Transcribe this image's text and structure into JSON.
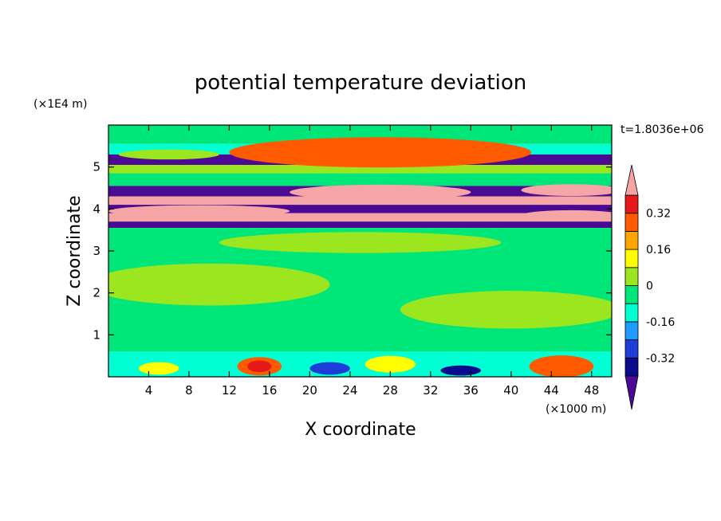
{
  "chart_data": {
    "type": "heatmap",
    "title": "potential temperature deviation",
    "xlabel": "X coordinate",
    "ylabel": "Z coordinate",
    "x_unit": "(×1000 m)",
    "y_unit": "(×1E4 m)",
    "time_label": "t=1.8036e+06",
    "xlim": [
      0,
      50
    ],
    "ylim": [
      0,
      6
    ],
    "x_ticks": [
      4,
      8,
      12,
      16,
      20,
      24,
      28,
      32,
      36,
      40,
      44,
      48
    ],
    "y_ticks": [
      1,
      2,
      3,
      4,
      5
    ],
    "colorbar": {
      "levels": [
        -0.4,
        -0.32,
        -0.24,
        -0.16,
        -0.08,
        0,
        0.08,
        0.16,
        0.24,
        0.32,
        0.4
      ],
      "colors": [
        "#4b0a93",
        "#0a0a8c",
        "#1e3cd8",
        "#1e9bff",
        "#00ffd2",
        "#00e678",
        "#9be61e",
        "#ffff00",
        "#ffa500",
        "#ff5a00",
        "#e61919",
        "#f5a5a5"
      ],
      "tick_labels": [
        "0.32",
        "0.16",
        "0",
        "-0.16",
        "-0.32"
      ],
      "tick_values": [
        0.32,
        0.16,
        0,
        -0.16,
        -0.32
      ]
    },
    "bands": [
      {
        "zmin": 5.55,
        "zmax": 6.0,
        "category": 5
      },
      {
        "zmin": 5.3,
        "zmax": 5.55,
        "category": 4
      },
      {
        "zmin": 5.05,
        "zmax": 5.3,
        "category": 0
      },
      {
        "zmin": 4.85,
        "zmax": 5.05,
        "category": 6
      },
      {
        "zmin": 4.55,
        "zmax": 4.85,
        "category": 5
      },
      {
        "zmin": 4.3,
        "zmax": 4.55,
        "category": 0
      },
      {
        "zmin": 4.1,
        "zmax": 4.3,
        "category": 11
      },
      {
        "zmin": 3.9,
        "zmax": 4.1,
        "category": 0
      },
      {
        "zmin": 3.7,
        "zmax": 3.9,
        "category": 11
      },
      {
        "zmin": 3.55,
        "zmax": 3.7,
        "category": 0
      },
      {
        "zmin": 0.6,
        "zmax": 3.55,
        "category": 5
      },
      {
        "zmin": 0.0,
        "zmax": 0.6,
        "category": 4
      }
    ],
    "blobs": [
      {
        "x": 27,
        "z": 5.35,
        "rx": 14,
        "rz": 0.3,
        "category": 11
      },
      {
        "x": 27,
        "z": 5.35,
        "rx": 15,
        "rz": 0.36,
        "category": 9
      },
      {
        "x": 6,
        "z": 5.3,
        "rx": 5,
        "rz": 0.12,
        "category": 6
      },
      {
        "x": 27,
        "z": 4.4,
        "rx": 9,
        "rz": 0.18,
        "category": 11
      },
      {
        "x": 46,
        "z": 4.45,
        "rx": 5,
        "rz": 0.14,
        "category": 11
      },
      {
        "x": 9,
        "z": 3.95,
        "rx": 9,
        "rz": 0.14,
        "category": 11
      },
      {
        "x": 46,
        "z": 3.85,
        "rx": 5,
        "rz": 0.12,
        "category": 11
      },
      {
        "x": 10,
        "z": 2.2,
        "rx": 12,
        "rz": 0.5,
        "category": 6
      },
      {
        "x": 40,
        "z": 1.6,
        "rx": 11,
        "rz": 0.45,
        "category": 6
      },
      {
        "x": 25,
        "z": 3.2,
        "rx": 14,
        "rz": 0.25,
        "category": 6
      },
      {
        "x": 15,
        "z": 0.25,
        "rx": 2.2,
        "rz": 0.22,
        "category": 9
      },
      {
        "x": 15,
        "z": 0.25,
        "rx": 1.2,
        "rz": 0.14,
        "category": 10
      },
      {
        "x": 28,
        "z": 0.3,
        "rx": 2.5,
        "rz": 0.2,
        "category": 7
      },
      {
        "x": 45,
        "z": 0.25,
        "rx": 2.8,
        "rz": 0.22,
        "category": 11
      },
      {
        "x": 45,
        "z": 0.25,
        "rx": 3.2,
        "rz": 0.26,
        "category": 9
      },
      {
        "x": 22,
        "z": 0.2,
        "rx": 2,
        "rz": 0.15,
        "category": 2
      },
      {
        "x": 35,
        "z": 0.15,
        "rx": 2,
        "rz": 0.12,
        "category": 1
      },
      {
        "x": 5,
        "z": 0.2,
        "rx": 2,
        "rz": 0.15,
        "category": 7
      }
    ]
  }
}
